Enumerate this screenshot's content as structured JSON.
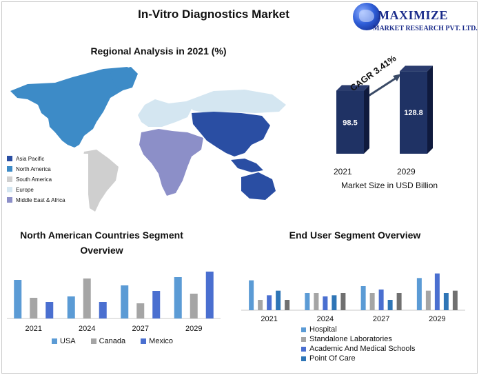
{
  "title": "In-Vitro Diagnostics Market",
  "logo": {
    "main": "MAXIMIZE",
    "sub": "MARKET RESEARCH PVT. LTD."
  },
  "map": {
    "title": "Regional Analysis in 2021 (%)",
    "legend": [
      {
        "label": "Asia Pacific",
        "color": "#2a4ea3"
      },
      {
        "label": "North America",
        "color": "#3d8bc7"
      },
      {
        "label": "South America",
        "color": "#cfcfcf"
      },
      {
        "label": "Europe",
        "color": "#d4e6f1"
      },
      {
        "label": "Middle East & Africa",
        "color": "#8c8fc8"
      }
    ]
  },
  "market_size": {
    "cagr": "CAGR 3.41%",
    "caption": "Market Size in USD Billion",
    "bars": [
      {
        "year": "2021",
        "value": 98.5,
        "label": "98.5"
      },
      {
        "year": "2029",
        "value": 128.8,
        "label": "128.8"
      }
    ]
  },
  "chart_data": [
    {
      "type": "bar",
      "title": "North American Countries Segment Overview",
      "categories": [
        "2021",
        "2024",
        "2027",
        "2029"
      ],
      "series": [
        {
          "name": "USA",
          "color": "#5b9bd5",
          "values": [
            28,
            16,
            24,
            30
          ]
        },
        {
          "name": "Canada",
          "color": "#a5a5a5",
          "values": [
            15,
            29,
            11,
            18
          ]
        },
        {
          "name": "Mexico",
          "color": "#4a6fd0",
          "values": [
            12,
            12,
            20,
            34
          ]
        }
      ],
      "ylim": [
        0,
        36
      ]
    },
    {
      "type": "bar",
      "title": "End User Segment Overview",
      "categories": [
        "2021",
        "2024",
        "2027",
        "2029"
      ],
      "series": [
        {
          "name": "Hospital",
          "color": "#5b9bd5",
          "values": [
            26,
            15,
            21,
            28
          ]
        },
        {
          "name": "Standalone Laboratories",
          "color": "#a5a5a5",
          "values": [
            9,
            15,
            15,
            17
          ]
        },
        {
          "name": "Academic And Medical Schools",
          "color": "#4a6fd0",
          "values": [
            13,
            12,
            18,
            32
          ]
        },
        {
          "name": "Point Of Care",
          "color": "#2e75b6",
          "values": [
            17,
            13,
            9,
            15
          ]
        },
        {
          "name": "",
          "color": "#707070",
          "values": [
            9,
            15,
            15,
            17
          ]
        }
      ],
      "ylim": [
        0,
        36
      ]
    }
  ]
}
